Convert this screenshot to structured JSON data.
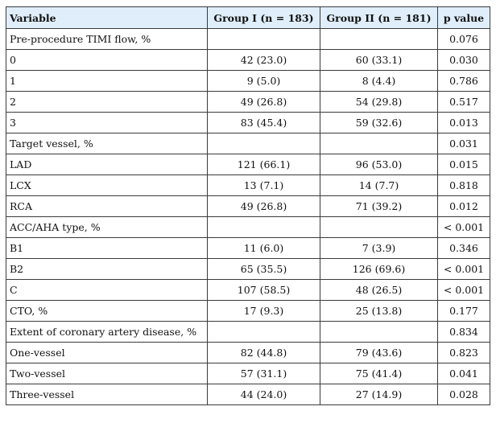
{
  "columns": [
    "Variable",
    "Group I (n = 183)",
    "Group II (n = 181)",
    "p value"
  ],
  "rows": [
    [
      "Pre-procedure TIMI flow, %",
      "",
      "",
      "0.076"
    ],
    [
      "0",
      "42 (23.0)",
      "60 (33.1)",
      "0.030"
    ],
    [
      "1",
      "9 (5.0)",
      "8 (4.4)",
      "0.786"
    ],
    [
      "2",
      "49 (26.8)",
      "54 (29.8)",
      "0.517"
    ],
    [
      "3",
      "83 (45.4)",
      "59 (32.6)",
      "0.013"
    ],
    [
      "Target vessel, %",
      "",
      "",
      "0.031"
    ],
    [
      "LAD",
      "121 (66.1)",
      "96 (53.0)",
      "0.015"
    ],
    [
      "LCX",
      "13 (7.1)",
      "14 (7.7)",
      "0.818"
    ],
    [
      "RCA",
      "49 (26.8)",
      "71 (39.2)",
      "0.012"
    ],
    [
      "ACC/AHA type, %",
      "",
      "",
      "< 0.001"
    ],
    [
      "B1",
      "11 (6.0)",
      "7 (3.9)",
      "0.346"
    ],
    [
      "B2",
      "65 (35.5)",
      "126 (69.6)",
      "< 0.001"
    ],
    [
      "C",
      "107 (58.5)",
      "48 (26.5)",
      "< 0.001"
    ],
    [
      "CTO, %",
      "17 (9.3)",
      "25 (13.8)",
      "0.177"
    ],
    [
      "Extent of coronary artery disease, %",
      "",
      "",
      "0.834"
    ],
    [
      "One-vessel",
      "82 (44.8)",
      "79 (43.6)",
      "0.823"
    ],
    [
      "Two-vessel",
      "57 (31.1)",
      "75 (41.4)",
      "0.041"
    ],
    [
      "Three-vessel",
      "44 (24.0)",
      "27 (14.9)",
      "0.028"
    ]
  ],
  "colors": {
    "header_background": "#dfeefa",
    "border": "#3a3a3a"
  }
}
